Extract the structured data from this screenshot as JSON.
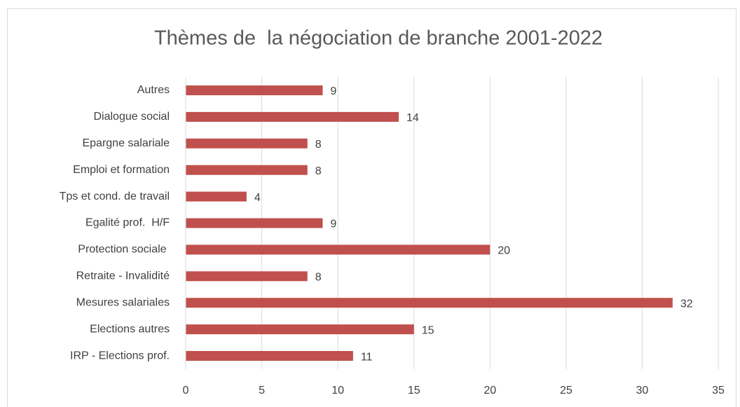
{
  "chart_data": {
    "type": "bar",
    "orientation": "horizontal",
    "title": "Thèmes de  la négociation de branche 2001-2022",
    "categories": [
      "Autres",
      "Dialogue social",
      "Epargne salariale",
      "Emploi et formation",
      "Tps et cond. de travail",
      "Egalité prof.  H/F",
      "Protection sociale ",
      "Retraite - Invalidité",
      "Mesures salariales",
      "Elections autres",
      "IRP - Elections prof."
    ],
    "values": [
      9,
      14,
      8,
      8,
      4,
      9,
      20,
      8,
      32,
      15,
      11
    ],
    "color": "#c0504d",
    "xlim": [
      0,
      35
    ],
    "xticks": [
      0,
      5,
      10,
      15,
      20,
      25,
      30,
      35
    ],
    "grid": true
  }
}
